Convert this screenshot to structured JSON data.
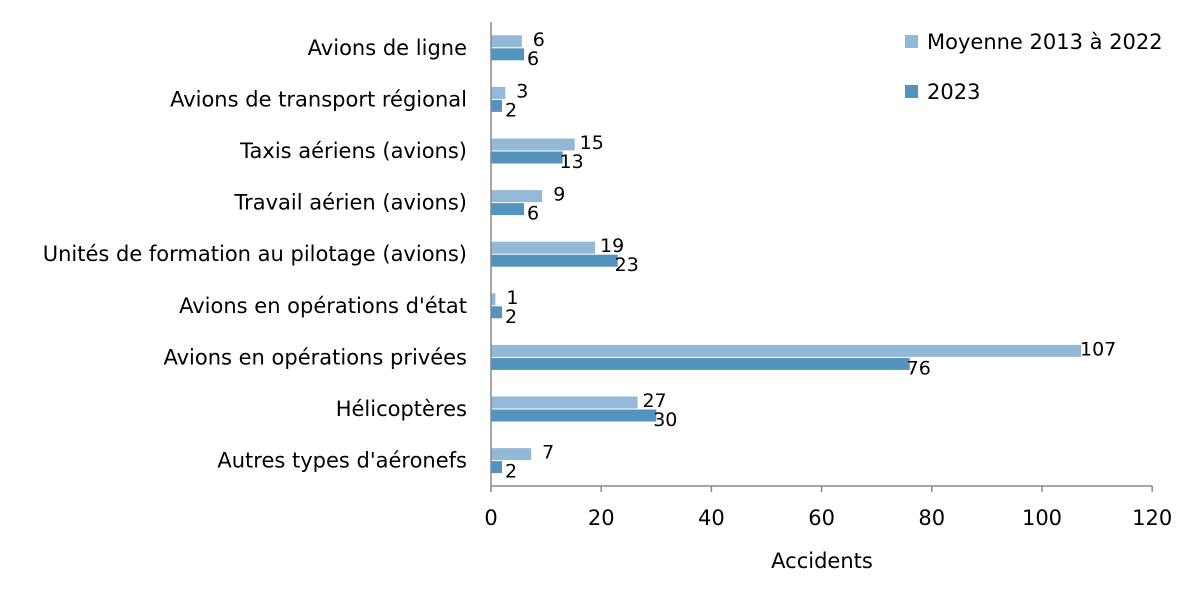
{
  "chart_data": {
    "type": "bar",
    "orientation": "horizontal",
    "categories": [
      "Avions de ligne",
      "Avions de transport régional",
      "Taxis aériens (avions)",
      "Travail aérien (avions)",
      "Unités de formation au pilotage (avions)",
      "Avions en opérations d'état",
      "Avions en opérations privées",
      "Hélicoptères",
      "Autres types d'aéronefs"
    ],
    "series": [
      {
        "name": "Moyenne 2013 à 2022",
        "color": "#93B9D6",
        "values": [
          5.6,
          2.6,
          15.2,
          9.3,
          18.9,
          0.8,
          107.1,
          26.6,
          7.3
        ],
        "labels": [
          "6",
          "3",
          "15",
          "9",
          "19",
          "1",
          "107",
          "27",
          "7"
        ]
      },
      {
        "name": "2023",
        "color": "#5593BF",
        "values": [
          6,
          2,
          13,
          6,
          23,
          2,
          76,
          30,
          2
        ],
        "labels": [
          "6",
          "2",
          "13",
          "6",
          "23",
          "2",
          "76",
          "30",
          "2"
        ]
      }
    ],
    "xlabel": "Accidents",
    "xlim": [
      0,
      120
    ],
    "xticks": [
      "0",
      "20",
      "40",
      "60",
      "80",
      "100",
      "120"
    ],
    "grid": false,
    "legend": "top-right"
  }
}
